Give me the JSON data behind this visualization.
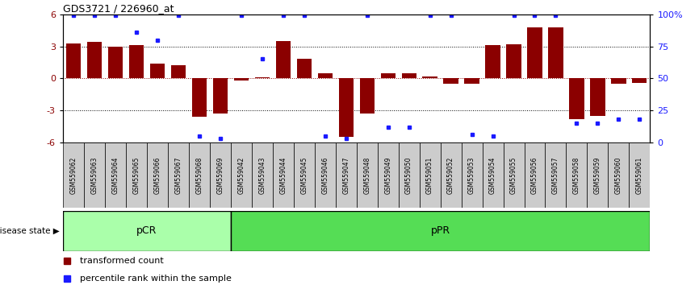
{
  "title": "GDS3721 / 226960_at",
  "samples": [
    "GSM559062",
    "GSM559063",
    "GSM559064",
    "GSM559065",
    "GSM559066",
    "GSM559067",
    "GSM559068",
    "GSM559069",
    "GSM559042",
    "GSM559043",
    "GSM559044",
    "GSM559045",
    "GSM559046",
    "GSM559047",
    "GSM559048",
    "GSM559049",
    "GSM559050",
    "GSM559051",
    "GSM559052",
    "GSM559053",
    "GSM559054",
    "GSM559055",
    "GSM559056",
    "GSM559057",
    "GSM559058",
    "GSM559059",
    "GSM559060",
    "GSM559061"
  ],
  "bar_values": [
    3.3,
    3.4,
    3.0,
    3.1,
    1.4,
    1.2,
    -3.6,
    -3.3,
    -0.2,
    0.1,
    3.5,
    1.8,
    0.5,
    -5.5,
    -3.3,
    0.5,
    0.5,
    0.2,
    -0.5,
    -0.5,
    3.1,
    3.2,
    4.8,
    4.8,
    -3.8,
    -3.5,
    -0.5,
    -0.4
  ],
  "percentile_values": [
    99,
    99,
    99,
    86,
    80,
    99,
    5,
    3,
    99,
    65,
    99,
    99,
    5,
    3,
    99,
    12,
    12,
    99,
    99,
    6,
    5,
    99,
    99,
    99,
    15,
    15,
    18,
    18
  ],
  "pCR_count": 8,
  "pPR_count": 20,
  "bar_color": "#8b0000",
  "blue_color": "#1a1aff",
  "background_color": "#ffffff",
  "ylim": [
    -6,
    6
  ],
  "y2lim": [
    0,
    100
  ],
  "yticks": [
    -6,
    -3,
    0,
    3,
    6
  ],
  "y2ticks": [
    0,
    25,
    50,
    75,
    100
  ],
  "dotted_lines_black": [
    -3,
    3
  ],
  "dotted_line_red": 0,
  "pCR_color": "#aaffaa",
  "pPR_color": "#55dd55",
  "pCR_label": "pCR",
  "pPR_label": "pPR",
  "disease_state_label": "disease state",
  "legend_bar_label": "transformed count",
  "legend_dot_label": "percentile rank within the sample"
}
